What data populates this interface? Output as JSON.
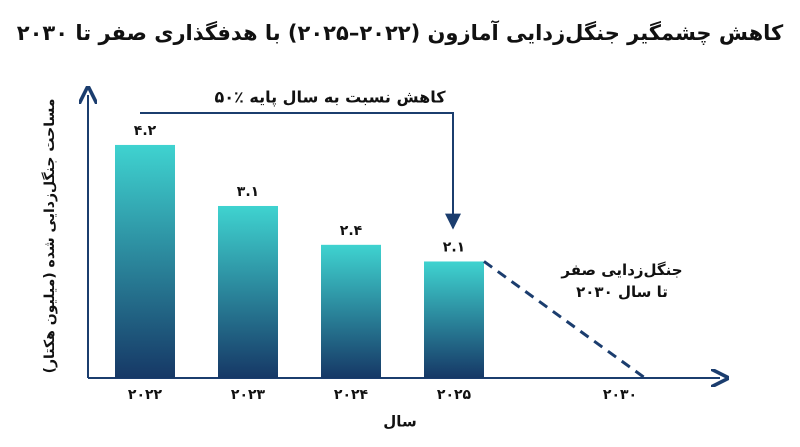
{
  "chart_data": {
    "type": "bar",
    "title": "کاهش چشمگیر جنگل‌زدایی آمازون (۲۰۲۲–۲۰۲۵) با هدفگذاری صفر تا ۲۰۳۰",
    "x_label": "سال",
    "y_label": "مساحت جنگل‌زدایی شده (میلیون هکتار)",
    "categories": [
      "۲۰۲۲",
      "۲۰۲۳",
      "۲۰۲۴",
      "۲۰۲۵",
      "۲۰۳۰"
    ],
    "values": [
      4.2,
      3.1,
      2.4,
      2.1,
      null
    ],
    "value_labels": [
      "۴.۲",
      "۳.۱",
      "۲.۴",
      "۲.۱",
      null
    ],
    "gradient": [
      "#3fd3d0",
      "#163866"
    ],
    "target": {
      "values": [
        null,
        null,
        null,
        2.1,
        0
      ],
      "color": "#1b3d6e",
      "dashed": true
    },
    "annotations": {
      "reduction": "۵۰٪ کاهش نسبت به سال پایه",
      "goal": "جنگل‌زدایی صفر\nتا سال ۲۰۳۰"
    },
    "annotation_color": "#1b3d6e",
    "ylim": [
      0,
      5.1
    ],
    "grid": false
  }
}
